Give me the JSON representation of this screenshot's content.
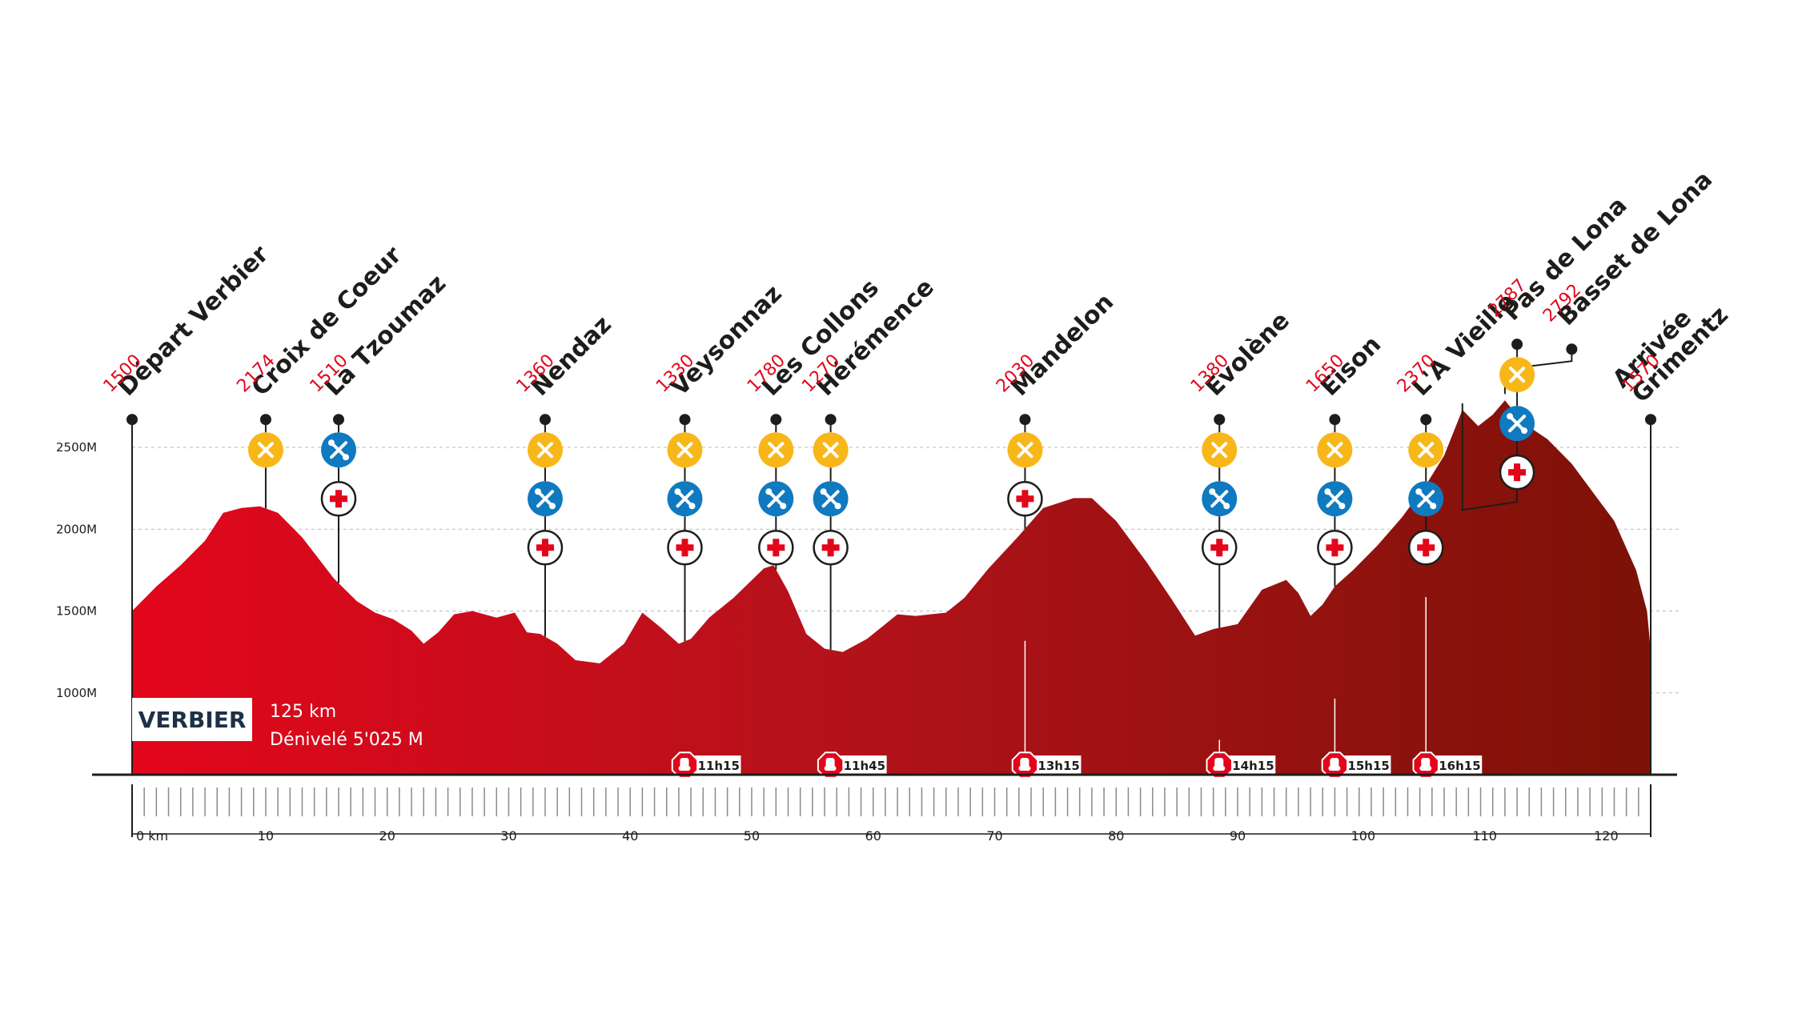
{
  "chart_data": {
    "type": "area",
    "title": "VERBIER",
    "stats": {
      "distance": "125 km",
      "elevation_gain": "Dénivelé 5'025 M"
    },
    "x_unit_label": "0 km",
    "x_ticks": [
      0,
      10,
      20,
      30,
      40,
      50,
      60,
      70,
      80,
      90,
      100,
      110,
      120
    ],
    "xlim": [
      0,
      125
    ],
    "ylim": [
      500,
      2900
    ],
    "y_ticks": [
      {
        "value": 1000,
        "label": "1000M"
      },
      {
        "value": 1500,
        "label": "1500M"
      },
      {
        "value": 2000,
        "label": "2000M"
      },
      {
        "value": 2500,
        "label": "2500M"
      }
    ],
    "grid": true,
    "profile": [
      [
        0,
        1500
      ],
      [
        2,
        1650
      ],
      [
        4,
        1780
      ],
      [
        6,
        1930
      ],
      [
        7.5,
        2100
      ],
      [
        9,
        2130
      ],
      [
        10.5,
        2140
      ],
      [
        12,
        2100
      ],
      [
        14,
        1950
      ],
      [
        16.6,
        1700
      ],
      [
        18.5,
        1560
      ],
      [
        20,
        1490
      ],
      [
        21.5,
        1450
      ],
      [
        23,
        1380
      ],
      [
        24,
        1300
      ],
      [
        25.2,
        1370
      ],
      [
        26.5,
        1480
      ],
      [
        28,
        1500
      ],
      [
        30,
        1460
      ],
      [
        31.5,
        1490
      ],
      [
        32.5,
        1370
      ],
      [
        33.6,
        1360
      ],
      [
        35,
        1300
      ],
      [
        36.5,
        1200
      ],
      [
        38.5,
        1180
      ],
      [
        40.5,
        1300
      ],
      [
        42,
        1490
      ],
      [
        43.5,
        1400
      ],
      [
        45,
        1300
      ],
      [
        46,
        1330
      ],
      [
        47.5,
        1460
      ],
      [
        49.5,
        1580
      ],
      [
        52,
        1760
      ],
      [
        52.8,
        1780
      ],
      [
        54,
        1620
      ],
      [
        55.5,
        1360
      ],
      [
        57,
        1270
      ],
      [
        58.5,
        1250
      ],
      [
        60.5,
        1330
      ],
      [
        63,
        1480
      ],
      [
        64.5,
        1470
      ],
      [
        67,
        1490
      ],
      [
        68.5,
        1580
      ],
      [
        70.5,
        1760
      ],
      [
        73,
        1960
      ],
      [
        75,
        2130
      ],
      [
        77.5,
        2190
      ],
      [
        79,
        2190
      ],
      [
        81,
        2050
      ],
      [
        83.5,
        1800
      ],
      [
        85.5,
        1580
      ],
      [
        87.5,
        1350
      ],
      [
        89,
        1390
      ],
      [
        91,
        1420
      ],
      [
        93,
        1630
      ],
      [
        95,
        1690
      ],
      [
        96,
        1610
      ],
      [
        97,
        1470
      ],
      [
        98,
        1540
      ],
      [
        99,
        1650
      ],
      [
        100.5,
        1750
      ],
      [
        102.5,
        1900
      ],
      [
        104.5,
        2070
      ],
      [
        106.5,
        2270
      ],
      [
        108,
        2450
      ],
      [
        109.5,
        2730
      ],
      [
        110.8,
        2630
      ],
      [
        112,
        2700
      ],
      [
        113,
        2787
      ],
      [
        114.5,
        2650
      ],
      [
        116.5,
        2550
      ],
      [
        118.5,
        2400
      ],
      [
        120.5,
        2200
      ],
      [
        122,
        2050
      ],
      [
        123.8,
        1750
      ],
      [
        124.7,
        1500
      ],
      [
        125,
        1260
      ]
    ],
    "profile_colors": {
      "start": "#e3061b",
      "mid": "#b5121b",
      "end": "#7c1207"
    },
    "points": [
      {
        "name": "Départ Verbier",
        "elev": "1500",
        "km": 0,
        "marker_y": 2670,
        "services": [],
        "conn": "direct"
      },
      {
        "name": "Croix de Coeur",
        "elev": "2174",
        "km": 11,
        "marker_y": 2670,
        "services": [
          "food"
        ],
        "conn": "direct"
      },
      {
        "name": "La Tzoumaz",
        "elev": "1510",
        "km": 17,
        "marker_y": 2670,
        "services": [
          "mechanic",
          "medical"
        ],
        "conn": "direct"
      },
      {
        "name": "Nendaz",
        "elev": "1360",
        "km": 34,
        "marker_y": 2670,
        "services": [
          "food",
          "mechanic",
          "medical"
        ],
        "conn": "direct"
      },
      {
        "name": "Veysonnaz",
        "elev": "1330",
        "km": 45.5,
        "marker_y": 2670,
        "services": [
          "food",
          "mechanic",
          "medical"
        ],
        "conn": "direct"
      },
      {
        "name": "Les Collons",
        "elev": "1780",
        "km": 53,
        "marker_y": 2670,
        "services": [
          "food",
          "mechanic",
          "medical"
        ],
        "conn": "direct"
      },
      {
        "name": "Hérémence",
        "elev": "1270",
        "km": 57.5,
        "marker_y": 2670,
        "services": [
          "food",
          "mechanic",
          "medical"
        ],
        "conn": "direct"
      },
      {
        "name": "Mandelon",
        "elev": "2030",
        "km": 73.5,
        "marker_y": 2670,
        "services": [
          "food",
          "medical"
        ],
        "conn": "direct"
      },
      {
        "name": "Evolène",
        "elev": "1380",
        "km": 89.5,
        "marker_y": 2670,
        "services": [
          "food",
          "mechanic",
          "medical"
        ],
        "conn": "direct"
      },
      {
        "name": "Eison",
        "elev": "1650",
        "km": 99,
        "marker_y": 2670,
        "services": [
          "food",
          "mechanic",
          "medical"
        ],
        "conn": "direct"
      },
      {
        "name": "L'A Vieille",
        "elev": "2370",
        "km": 106.5,
        "marker_y": 2670,
        "services": [
          "food",
          "mechanic",
          "medical"
        ],
        "conn": "direct"
      },
      {
        "name": "Pas de Lona",
        "elev": "2787",
        "km": 114,
        "marker_y": 3130,
        "services": [
          "food",
          "mechanic",
          "medical"
        ],
        "conn": "bend",
        "bend_km": 109.5
      },
      {
        "name": "Basset de Lona",
        "elev": "2792",
        "km": 118.5,
        "marker_y": 3100,
        "services": [],
        "conn": "bend",
        "bend_km": 113
      },
      {
        "name": "Arrivée Grimentz",
        "name_lines": [
          "Arrivée",
          "Grimentz"
        ],
        "elev": "1570",
        "km": 125,
        "marker_y": 2670,
        "services": [],
        "conn": "direct"
      }
    ],
    "cutoffs": [
      {
        "km": 45.5,
        "time": "11h15"
      },
      {
        "km": 57.5,
        "time": "11h45"
      },
      {
        "km": 73.5,
        "time": "13h15"
      },
      {
        "km": 89.5,
        "time": "14h15"
      },
      {
        "km": 99,
        "time": "15h15"
      },
      {
        "km": 106.5,
        "time": "16h15"
      }
    ],
    "service_colors": {
      "food": "#f8b719",
      "mechanic": "#0f7ac0",
      "medical": "#e3061b"
    },
    "icons": {
      "food": "fork-knife-icon",
      "mechanic": "tools-icon",
      "medical": "first-aid-icon",
      "cutoff": "stop-hand-icon"
    }
  }
}
